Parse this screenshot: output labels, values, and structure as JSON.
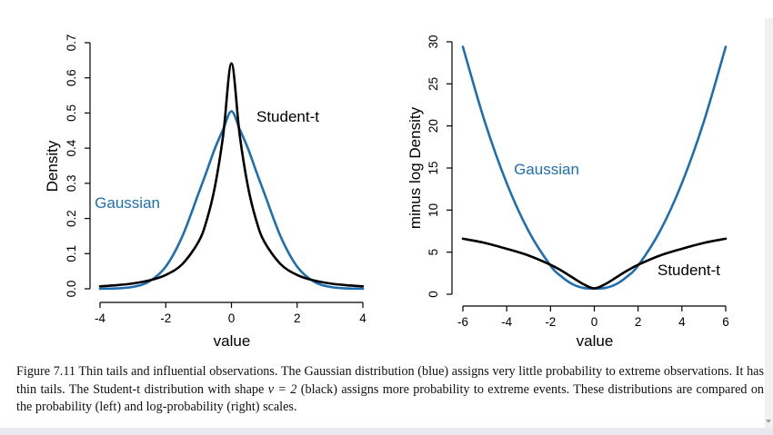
{
  "chart_data": [
    {
      "type": "line",
      "title": "",
      "xlabel": "value",
      "ylabel": "Density",
      "xlim": [
        -4,
        4
      ],
      "ylim": [
        0,
        0.7
      ],
      "x_ticks": [
        "-4",
        "-2",
        "0",
        "2",
        "4"
      ],
      "y_ticks": [
        "0.0",
        "0.1",
        "0.2",
        "0.3",
        "0.4",
        "0.5",
        "0.6",
        "0.7"
      ],
      "grid": false,
      "annotations": [
        "Gaussian",
        "Student-t"
      ],
      "series": [
        {
          "name": "Gaussian",
          "color": "#1f6eb0",
          "x": [
            -4.0,
            -3.5,
            -3.0,
            -2.5,
            -2.0,
            -1.5,
            -1.0,
            -0.75,
            -0.5,
            -0.25,
            0.0,
            0.25,
            0.5,
            0.75,
            1.0,
            1.5,
            2.0,
            2.5,
            3.0,
            3.5,
            4.0
          ],
          "y": [
            0.0002,
            0.0011,
            0.0054,
            0.021,
            0.063,
            0.148,
            0.272,
            0.335,
            0.4,
            0.454,
            0.505,
            0.454,
            0.4,
            0.335,
            0.272,
            0.148,
            0.063,
            0.021,
            0.0054,
            0.0011,
            0.0002
          ]
        },
        {
          "name": "Student-t",
          "color": "#000000",
          "x": [
            -4.0,
            -3.5,
            -3.0,
            -2.5,
            -2.0,
            -1.5,
            -1.0,
            -0.75,
            -0.5,
            -0.25,
            0.0,
            0.25,
            0.5,
            0.75,
            1.0,
            1.5,
            2.0,
            2.5,
            3.0,
            3.5,
            4.0
          ],
          "y": [
            0.0071,
            0.0102,
            0.0152,
            0.0238,
            0.0393,
            0.0698,
            0.134,
            0.196,
            0.292,
            0.438,
            0.641,
            0.438,
            0.292,
            0.196,
            0.134,
            0.0698,
            0.0393,
            0.0238,
            0.0152,
            0.0102,
            0.0071
          ]
        }
      ]
    },
    {
      "type": "line",
      "title": "",
      "xlabel": "value",
      "ylabel": "minus log Density",
      "xlim": [
        -6,
        6
      ],
      "ylim": [
        0,
        30
      ],
      "x_ticks": [
        "-6",
        "-4",
        "-2",
        "0",
        "2",
        "4",
        "6"
      ],
      "y_ticks": [
        "0",
        "5",
        "10",
        "15",
        "20",
        "25",
        "30"
      ],
      "grid": false,
      "annotations": [
        "Gaussian",
        "Student-t"
      ],
      "series": [
        {
          "name": "Gaussian",
          "color": "#1f6eb0",
          "x": [
            -6.0,
            -5.0,
            -4.0,
            -3.0,
            -2.0,
            -1.5,
            -1.0,
            -0.5,
            0.0,
            0.5,
            1.0,
            1.5,
            2.0,
            3.0,
            4.0,
            5.0,
            6.0
          ],
          "y": [
            29.4,
            20.5,
            13.2,
            7.5,
            3.4,
            2.1,
            1.2,
            0.75,
            0.68,
            0.75,
            1.2,
            2.1,
            3.4,
            7.5,
            13.2,
            20.5,
            29.4
          ]
        },
        {
          "name": "Student-t",
          "color": "#000000",
          "x": [
            -6.0,
            -5.0,
            -4.0,
            -3.0,
            -2.0,
            -1.5,
            -1.0,
            -0.5,
            0.0,
            0.5,
            1.0,
            1.5,
            2.0,
            3.0,
            4.0,
            5.0,
            6.0
          ],
          "y": [
            6.6,
            6.1,
            5.4,
            4.6,
            3.5,
            2.8,
            2.0,
            1.2,
            0.7,
            1.2,
            2.0,
            2.8,
            3.5,
            4.6,
            5.4,
            6.1,
            6.6
          ]
        }
      ]
    }
  ],
  "caption": {
    "text": "Figure 7.11 Thin tails and influential observations. The Gaussian distribution (blue) assigns very little probability to extreme observations. It has thin tails. The Student-t distribution with shape",
    "symbol": "ν = 2",
    "text_after": "(black) assigns more probability to extreme events. These distributions are compared on the probability (left) and log-probability (right) scales."
  }
}
